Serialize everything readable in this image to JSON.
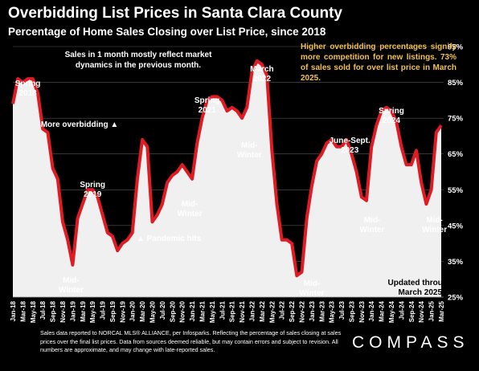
{
  "header": {
    "title": "Overbidding List Prices in Santa Clara County",
    "subtitle": "Percentage of Home Sales Closing over List Price, since 2018"
  },
  "note": "Sales in 1 month mostly reflect market dynamics in the previous month.",
  "callout": "Higher overbidding percentages signify more competition for new listings. 73% of sales sold for over list price in March 2025.",
  "footer": "Sales data reported to NORCAL MLS® ALLIANCE, per Infosparks. Reflecting the percentage of sales closing at sales prices over the final list prices. Data from sources deemed reliable, but may contain errors and subject to revision. All numbers are approximate, and may change with late-reported sales.",
  "logo": "COMPASS",
  "colors": {
    "line": "#e01b24",
    "fill": "#f0f0f0",
    "callout": "#f2c14e",
    "background": "#000000"
  },
  "chart_data": {
    "type": "area",
    "title": "Overbidding List Prices in Santa Clara County",
    "subtitle": "Percentage of Home Sales Closing over List Price, since 2018",
    "ylim": [
      25,
      95
    ],
    "y_ticks": [
      "25%",
      "35%",
      "45%",
      "55%",
      "65%",
      "75%",
      "85%",
      "95%"
    ],
    "y_tick_values": [
      25,
      35,
      45,
      55,
      65,
      75,
      85,
      95
    ],
    "x_tick_labels": [
      "Jan-18",
      "Mar-18",
      "May-18",
      "Jul-18",
      "Sep-18",
      "Nov-18",
      "Jan-19",
      "Mar-19",
      "May-19",
      "Jul-19",
      "Sep-19",
      "Nov-19",
      "Jan-20",
      "Mar-20",
      "May-20",
      "Jul-20",
      "Sep-20",
      "Nov-20",
      "Jan-21",
      "Mar-21",
      "May-21",
      "Jul-21",
      "Sep-21",
      "Nov-21",
      "Jan-22",
      "Mar-22",
      "May-22",
      "Jul-22",
      "Sep-22",
      "Nov-22",
      "Jan-23",
      "Mar-23",
      "May-23",
      "Jul-23",
      "Sep-23",
      "Nov-23",
      "Jan-24",
      "Mar-24",
      "May-24",
      "Jul-24",
      "Sep-24",
      "Nov-24",
      "Jan-25",
      "Mar-25"
    ],
    "x": [
      "Jan-18",
      "Feb-18",
      "Mar-18",
      "Apr-18",
      "May-18",
      "Jun-18",
      "Jul-18",
      "Aug-18",
      "Sep-18",
      "Oct-18",
      "Nov-18",
      "Dec-18",
      "Jan-19",
      "Feb-19",
      "Mar-19",
      "Apr-19",
      "May-19",
      "Jun-19",
      "Jul-19",
      "Aug-19",
      "Sep-19",
      "Oct-19",
      "Nov-19",
      "Dec-19",
      "Jan-20",
      "Feb-20",
      "Mar-20",
      "Apr-20",
      "May-20",
      "Jun-20",
      "Jul-20",
      "Aug-20",
      "Sep-20",
      "Oct-20",
      "Nov-20",
      "Dec-20",
      "Jan-21",
      "Feb-21",
      "Mar-21",
      "Apr-21",
      "May-21",
      "Jun-21",
      "Jul-21",
      "Aug-21",
      "Sep-21",
      "Oct-21",
      "Nov-21",
      "Dec-21",
      "Jan-22",
      "Feb-22",
      "Mar-22",
      "Apr-22",
      "May-22",
      "Jun-22",
      "Jul-22",
      "Aug-22",
      "Sep-22",
      "Oct-22",
      "Nov-22",
      "Dec-22",
      "Jan-23",
      "Feb-23",
      "Mar-23",
      "Apr-23",
      "May-23",
      "Jun-23",
      "Jul-23",
      "Aug-23",
      "Sep-23",
      "Oct-23",
      "Nov-23",
      "Dec-23",
      "Jan-24",
      "Feb-24",
      "Mar-24",
      "Apr-24",
      "May-24",
      "Jun-24",
      "Jul-24",
      "Aug-24",
      "Sep-24",
      "Oct-24",
      "Nov-24",
      "Dec-24",
      "Jan-25",
      "Feb-25",
      "Mar-25"
    ],
    "values": [
      79,
      86,
      85,
      86,
      86,
      82,
      72,
      71,
      61,
      58,
      46,
      41,
      34,
      47,
      51,
      55,
      55,
      53,
      48,
      43,
      42,
      38,
      40,
      41,
      43,
      58,
      69,
      67,
      46,
      48,
      51,
      57,
      59,
      60,
      62,
      60,
      58,
      68,
      75,
      80,
      81,
      81,
      80,
      77,
      78,
      77,
      75,
      78,
      88,
      91,
      90,
      87,
      66,
      51,
      41,
      41,
      40,
      31,
      32,
      47,
      56,
      63,
      65,
      68,
      69,
      67,
      67,
      69,
      65,
      60,
      53,
      52,
      67,
      73,
      77,
      78,
      77,
      74,
      67,
      62,
      62,
      66,
      57,
      51,
      55,
      71,
      73
    ],
    "annotations": [
      {
        "text": "Spring 2018",
        "x": "Apr-18"
      },
      {
        "text": "Spring 2019",
        "x": "May-19"
      },
      {
        "text": "Mid-Winter",
        "x": "Jan-19"
      },
      {
        "text": "More overbidding ▲",
        "x": "Apr-19"
      },
      {
        "text": "▲ Pandemic hits",
        "x": "Mar-20"
      },
      {
        "text": "Mid-Winter",
        "x": "Jan-21"
      },
      {
        "text": "Spring 2021",
        "x": "Apr-21"
      },
      {
        "text": "Mid-Winter",
        "x": "Dec-21"
      },
      {
        "text": "March 2022",
        "x": "Mar-22"
      },
      {
        "text": "Mid-Winter",
        "x": "Jan-23"
      },
      {
        "text": "June-Sept. 2023",
        "x": "Aug-23"
      },
      {
        "text": "Spring 2024",
        "x": "May-24"
      },
      {
        "text": "Mid-Winter",
        "x": "Dec-23"
      },
      {
        "text": "Mid-Winter",
        "x": "Jan-25"
      },
      {
        "text": "Updated through March 2025",
        "x": "Feb-25"
      }
    ]
  }
}
